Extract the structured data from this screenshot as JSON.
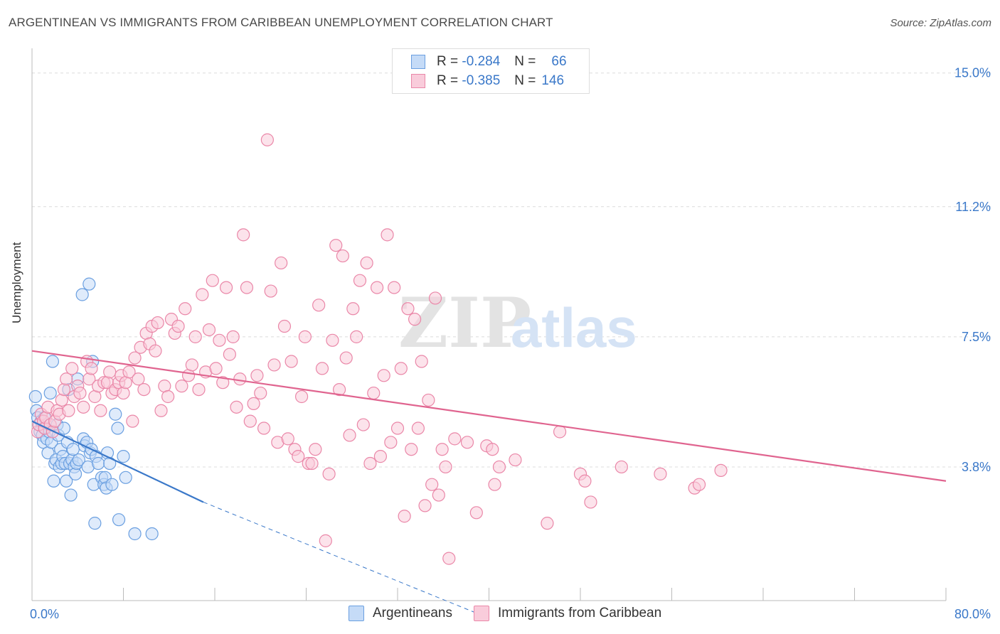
{
  "header": {
    "title": "ARGENTINEAN VS IMMIGRANTS FROM CARIBBEAN UNEMPLOYMENT CORRELATION CHART",
    "source": "Source: ZipAtlas.com"
  },
  "legend": {
    "rows": [
      {
        "r_label": "R =",
        "r_value": "-0.284",
        "n_label": "N =",
        "n_value": "66",
        "color": "#6a9fe0",
        "fill": "#c5dbf7"
      },
      {
        "r_label": "R =",
        "r_value": "-0.385",
        "n_label": "N =",
        "n_value": "146",
        "color": "#ea87a8",
        "fill": "#f9ccdb"
      }
    ]
  },
  "bottom_legend": {
    "items": [
      {
        "label": "Argentineans",
        "color": "#6a9fe0",
        "fill": "#c5dbf7"
      },
      {
        "label": "Immigrants from Caribbean",
        "color": "#ea87a8",
        "fill": "#f9ccdb"
      }
    ]
  },
  "watermark": {
    "zip": "ZIP",
    "atlas": "atlas"
  },
  "chart_data": {
    "type": "scatter",
    "title": "ARGENTINEAN VS IMMIGRANTS FROM CARIBBEAN UNEMPLOYMENT CORRELATION CHART",
    "xlabel": "",
    "ylabel": "Unemployment",
    "xlim": [
      0,
      80
    ],
    "ylim": [
      0,
      15.5
    ],
    "x_tick_labels": [
      "0.0%",
      "80.0%"
    ],
    "y_ticks": [
      3.8,
      7.5,
      11.2,
      15.0
    ],
    "y_tick_labels": [
      "3.8%",
      "7.5%",
      "11.2%",
      "15.0%"
    ],
    "grid": true,
    "legend_position": "top-center",
    "series": [
      {
        "name": "Argentineans",
        "color": "#3a78c9",
        "points": [
          [
            0.3,
            5.8
          ],
          [
            0.4,
            5.4
          ],
          [
            0.5,
            5.2
          ],
          [
            0.6,
            5.0
          ],
          [
            0.7,
            4.8
          ],
          [
            0.8,
            5.1
          ],
          [
            0.9,
            4.7
          ],
          [
            1.0,
            4.5
          ],
          [
            1.1,
            5.2
          ],
          [
            1.2,
            4.9
          ],
          [
            1.3,
            4.6
          ],
          [
            1.4,
            4.2
          ],
          [
            1.5,
            4.8
          ],
          [
            1.6,
            5.9
          ],
          [
            1.7,
            4.5
          ],
          [
            1.8,
            6.8
          ],
          [
            1.9,
            3.4
          ],
          [
            2.0,
            3.9
          ],
          [
            2.1,
            4.0
          ],
          [
            2.2,
            5.0
          ],
          [
            2.3,
            4.7
          ],
          [
            2.4,
            3.8
          ],
          [
            2.5,
            4.3
          ],
          [
            2.6,
            3.9
          ],
          [
            2.7,
            4.1
          ],
          [
            2.8,
            4.9
          ],
          [
            2.9,
            3.9
          ],
          [
            3.0,
            3.4
          ],
          [
            3.1,
            4.5
          ],
          [
            3.2,
            6.0
          ],
          [
            3.3,
            3.9
          ],
          [
            3.4,
            3.0
          ],
          [
            3.5,
            4.0
          ],
          [
            3.6,
            4.3
          ],
          [
            3.7,
            3.8
          ],
          [
            3.8,
            3.6
          ],
          [
            3.9,
            3.9
          ],
          [
            4.0,
            6.3
          ],
          [
            4.1,
            4.0
          ],
          [
            4.4,
            8.7
          ],
          [
            4.5,
            4.6
          ],
          [
            4.6,
            4.4
          ],
          [
            4.8,
            4.5
          ],
          [
            4.9,
            3.8
          ],
          [
            5.0,
            9.0
          ],
          [
            5.1,
            4.2
          ],
          [
            5.2,
            4.3
          ],
          [
            5.3,
            6.8
          ],
          [
            5.4,
            3.3
          ],
          [
            5.5,
            2.2
          ],
          [
            5.6,
            4.1
          ],
          [
            5.8,
            3.9
          ],
          [
            6.1,
            3.5
          ],
          [
            6.3,
            3.3
          ],
          [
            6.4,
            3.5
          ],
          [
            6.5,
            3.2
          ],
          [
            6.6,
            4.2
          ],
          [
            6.8,
            3.9
          ],
          [
            7.0,
            3.3
          ],
          [
            7.3,
            5.3
          ],
          [
            7.5,
            4.9
          ],
          [
            7.6,
            2.3
          ],
          [
            8.0,
            4.1
          ],
          [
            8.2,
            3.5
          ],
          [
            9.0,
            1.9
          ],
          [
            10.5,
            1.9
          ]
        ],
        "trend": {
          "x": [
            0,
            15
          ],
          "y": [
            5.1,
            2.8
          ],
          "dashed_to": [
            40,
            -0.5
          ]
        }
      },
      {
        "name": "Immigrants from Caribbean",
        "color": "#e0648f",
        "points": [
          [
            0.5,
            4.8
          ],
          [
            0.6,
            5.0
          ],
          [
            0.8,
            5.3
          ],
          [
            1.0,
            5.1
          ],
          [
            1.1,
            4.9
          ],
          [
            1.2,
            5.2
          ],
          [
            1.4,
            5.5
          ],
          [
            1.6,
            5.0
          ],
          [
            1.8,
            4.8
          ],
          [
            2.0,
            5.1
          ],
          [
            2.2,
            5.4
          ],
          [
            2.4,
            5.3
          ],
          [
            2.6,
            5.7
          ],
          [
            2.8,
            6.0
          ],
          [
            3.0,
            6.3
          ],
          [
            3.2,
            5.4
          ],
          [
            3.5,
            6.6
          ],
          [
            3.7,
            5.8
          ],
          [
            4.0,
            6.1
          ],
          [
            4.2,
            5.9
          ],
          [
            4.5,
            5.5
          ],
          [
            4.8,
            6.8
          ],
          [
            5.0,
            6.3
          ],
          [
            5.2,
            6.6
          ],
          [
            5.5,
            5.8
          ],
          [
            5.8,
            6.1
          ],
          [
            6.0,
            5.4
          ],
          [
            6.3,
            6.2
          ],
          [
            6.6,
            6.2
          ],
          [
            6.8,
            6.5
          ],
          [
            7.0,
            5.9
          ],
          [
            7.3,
            6.0
          ],
          [
            7.6,
            6.2
          ],
          [
            7.8,
            6.4
          ],
          [
            8.0,
            5.9
          ],
          [
            8.2,
            6.2
          ],
          [
            8.5,
            6.5
          ],
          [
            8.8,
            5.1
          ],
          [
            9.0,
            6.9
          ],
          [
            9.3,
            6.3
          ],
          [
            9.5,
            7.2
          ],
          [
            9.8,
            6.0
          ],
          [
            10.0,
            7.6
          ],
          [
            10.3,
            7.3
          ],
          [
            10.5,
            7.8
          ],
          [
            10.8,
            7.1
          ],
          [
            11.0,
            7.9
          ],
          [
            11.3,
            5.4
          ],
          [
            11.6,
            6.1
          ],
          [
            11.9,
            5.8
          ],
          [
            12.2,
            8.0
          ],
          [
            12.5,
            7.6
          ],
          [
            12.8,
            7.8
          ],
          [
            13.1,
            6.1
          ],
          [
            13.4,
            8.3
          ],
          [
            13.7,
            6.4
          ],
          [
            14.0,
            6.7
          ],
          [
            14.3,
            7.5
          ],
          [
            14.6,
            6.0
          ],
          [
            14.9,
            8.7
          ],
          [
            15.2,
            6.5
          ],
          [
            15.5,
            7.7
          ],
          [
            15.8,
            9.1
          ],
          [
            16.1,
            6.6
          ],
          [
            16.4,
            7.4
          ],
          [
            16.7,
            6.2
          ],
          [
            17.0,
            8.9
          ],
          [
            17.3,
            7.0
          ],
          [
            17.6,
            7.5
          ],
          [
            17.9,
            5.5
          ],
          [
            18.2,
            6.3
          ],
          [
            18.5,
            10.4
          ],
          [
            18.8,
            8.9
          ],
          [
            19.1,
            5.1
          ],
          [
            19.4,
            5.6
          ],
          [
            19.7,
            6.4
          ],
          [
            20.0,
            5.9
          ],
          [
            20.3,
            4.9
          ],
          [
            20.6,
            13.1
          ],
          [
            20.9,
            8.8
          ],
          [
            21.2,
            6.7
          ],
          [
            21.5,
            4.5
          ],
          [
            21.8,
            9.6
          ],
          [
            22.1,
            7.8
          ],
          [
            22.4,
            4.6
          ],
          [
            22.7,
            6.8
          ],
          [
            23.0,
            4.3
          ],
          [
            23.3,
            4.1
          ],
          [
            23.6,
            5.8
          ],
          [
            23.9,
            7.5
          ],
          [
            24.2,
            3.9
          ],
          [
            24.5,
            3.9
          ],
          [
            24.8,
            4.3
          ],
          [
            25.1,
            8.4
          ],
          [
            25.4,
            6.6
          ],
          [
            25.7,
            1.7
          ],
          [
            26.0,
            3.6
          ],
          [
            26.3,
            7.4
          ],
          [
            26.6,
            10.1
          ],
          [
            26.9,
            6.0
          ],
          [
            27.2,
            9.8
          ],
          [
            27.5,
            6.9
          ],
          [
            27.8,
            4.7
          ],
          [
            28.1,
            8.3
          ],
          [
            28.4,
            7.5
          ],
          [
            28.7,
            9.1
          ],
          [
            29.0,
            5.0
          ],
          [
            29.3,
            9.6
          ],
          [
            29.6,
            3.9
          ],
          [
            29.9,
            5.9
          ],
          [
            30.2,
            8.9
          ],
          [
            30.5,
            4.1
          ],
          [
            30.8,
            6.4
          ],
          [
            31.1,
            10.4
          ],
          [
            31.4,
            4.5
          ],
          [
            31.7,
            8.9
          ],
          [
            32.0,
            4.9
          ],
          [
            32.3,
            6.6
          ],
          [
            32.6,
            2.4
          ],
          [
            32.9,
            8.3
          ],
          [
            33.2,
            4.3
          ],
          [
            33.5,
            8.0
          ],
          [
            33.8,
            4.9
          ],
          [
            34.1,
            6.8
          ],
          [
            34.4,
            2.7
          ],
          [
            34.7,
            5.7
          ],
          [
            35.0,
            3.3
          ],
          [
            35.3,
            8.6
          ],
          [
            35.6,
            3.0
          ],
          [
            35.9,
            4.3
          ],
          [
            36.2,
            3.8
          ],
          [
            36.5,
            1.2
          ],
          [
            37.0,
            4.6
          ],
          [
            38.1,
            4.5
          ],
          [
            38.9,
            2.5
          ],
          [
            39.8,
            4.4
          ],
          [
            40.3,
            4.3
          ],
          [
            40.5,
            3.3
          ],
          [
            40.9,
            3.8
          ],
          [
            42.3,
            4.0
          ],
          [
            45.1,
            2.2
          ],
          [
            46.2,
            4.8
          ],
          [
            48.0,
            3.6
          ],
          [
            48.4,
            3.4
          ],
          [
            48.9,
            2.8
          ],
          [
            51.6,
            3.8
          ],
          [
            55.0,
            3.6
          ],
          [
            58.0,
            3.2
          ],
          [
            58.4,
            3.3
          ],
          [
            60.3,
            3.7
          ]
        ],
        "trend": {
          "x": [
            0,
            80
          ],
          "y": [
            7.1,
            3.4
          ]
        }
      }
    ]
  }
}
